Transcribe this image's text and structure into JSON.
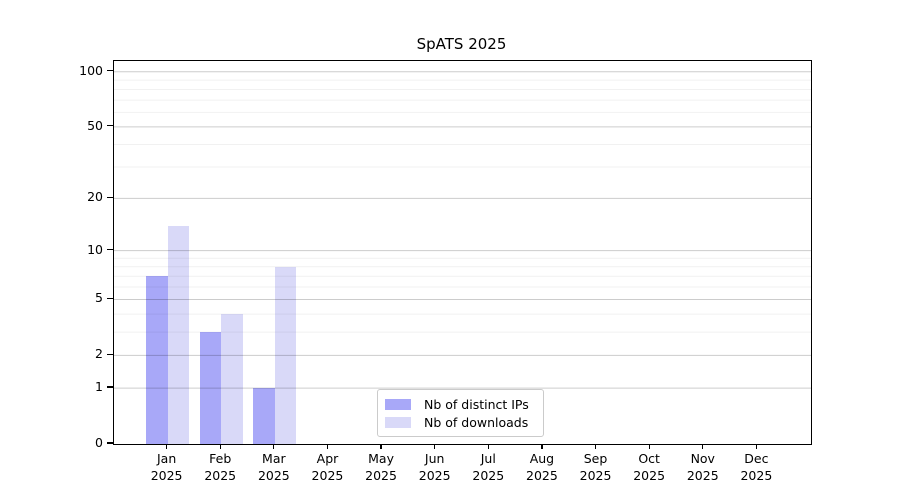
{
  "chart_data": {
    "type": "bar",
    "title": "SpATS 2025",
    "categories": [
      {
        "month": "Jan",
        "year": "2025"
      },
      {
        "month": "Feb",
        "year": "2025"
      },
      {
        "month": "Mar",
        "year": "2025"
      },
      {
        "month": "Apr",
        "year": "2025"
      },
      {
        "month": "May",
        "year": "2025"
      },
      {
        "month": "Jun",
        "year": "2025"
      },
      {
        "month": "Jul",
        "year": "2025"
      },
      {
        "month": "Aug",
        "year": "2025"
      },
      {
        "month": "Sep",
        "year": "2025"
      },
      {
        "month": "Oct",
        "year": "2025"
      },
      {
        "month": "Nov",
        "year": "2025"
      },
      {
        "month": "Dec",
        "year": "2025"
      }
    ],
    "series": [
      {
        "name": "Nb of distinct IPs",
        "color": "#a8a8f8",
        "values": [
          7,
          3,
          1,
          0,
          0,
          0,
          0,
          0,
          0,
          0,
          0,
          0
        ]
      },
      {
        "name": "Nb of downloads",
        "color": "#d9d9f8",
        "values": [
          14,
          4,
          8,
          0,
          0,
          0,
          0,
          0,
          0,
          0,
          0,
          0
        ]
      }
    ],
    "y_axis": {
      "scale": "log1p",
      "ylim": [
        0,
        100
      ],
      "ticks": [
        0,
        1,
        2,
        5,
        10,
        20,
        50,
        100
      ],
      "minor_ticks": [
        3,
        4,
        6,
        7,
        8,
        9,
        30,
        40,
        60,
        70,
        80,
        90
      ]
    },
    "grid": true,
    "legend_position": "bottom-center",
    "colors": {
      "background": "#ffffff",
      "spine": "#000000",
      "major_grid": "#d4d4d4",
      "minor_grid": "#f1f1f1"
    }
  }
}
